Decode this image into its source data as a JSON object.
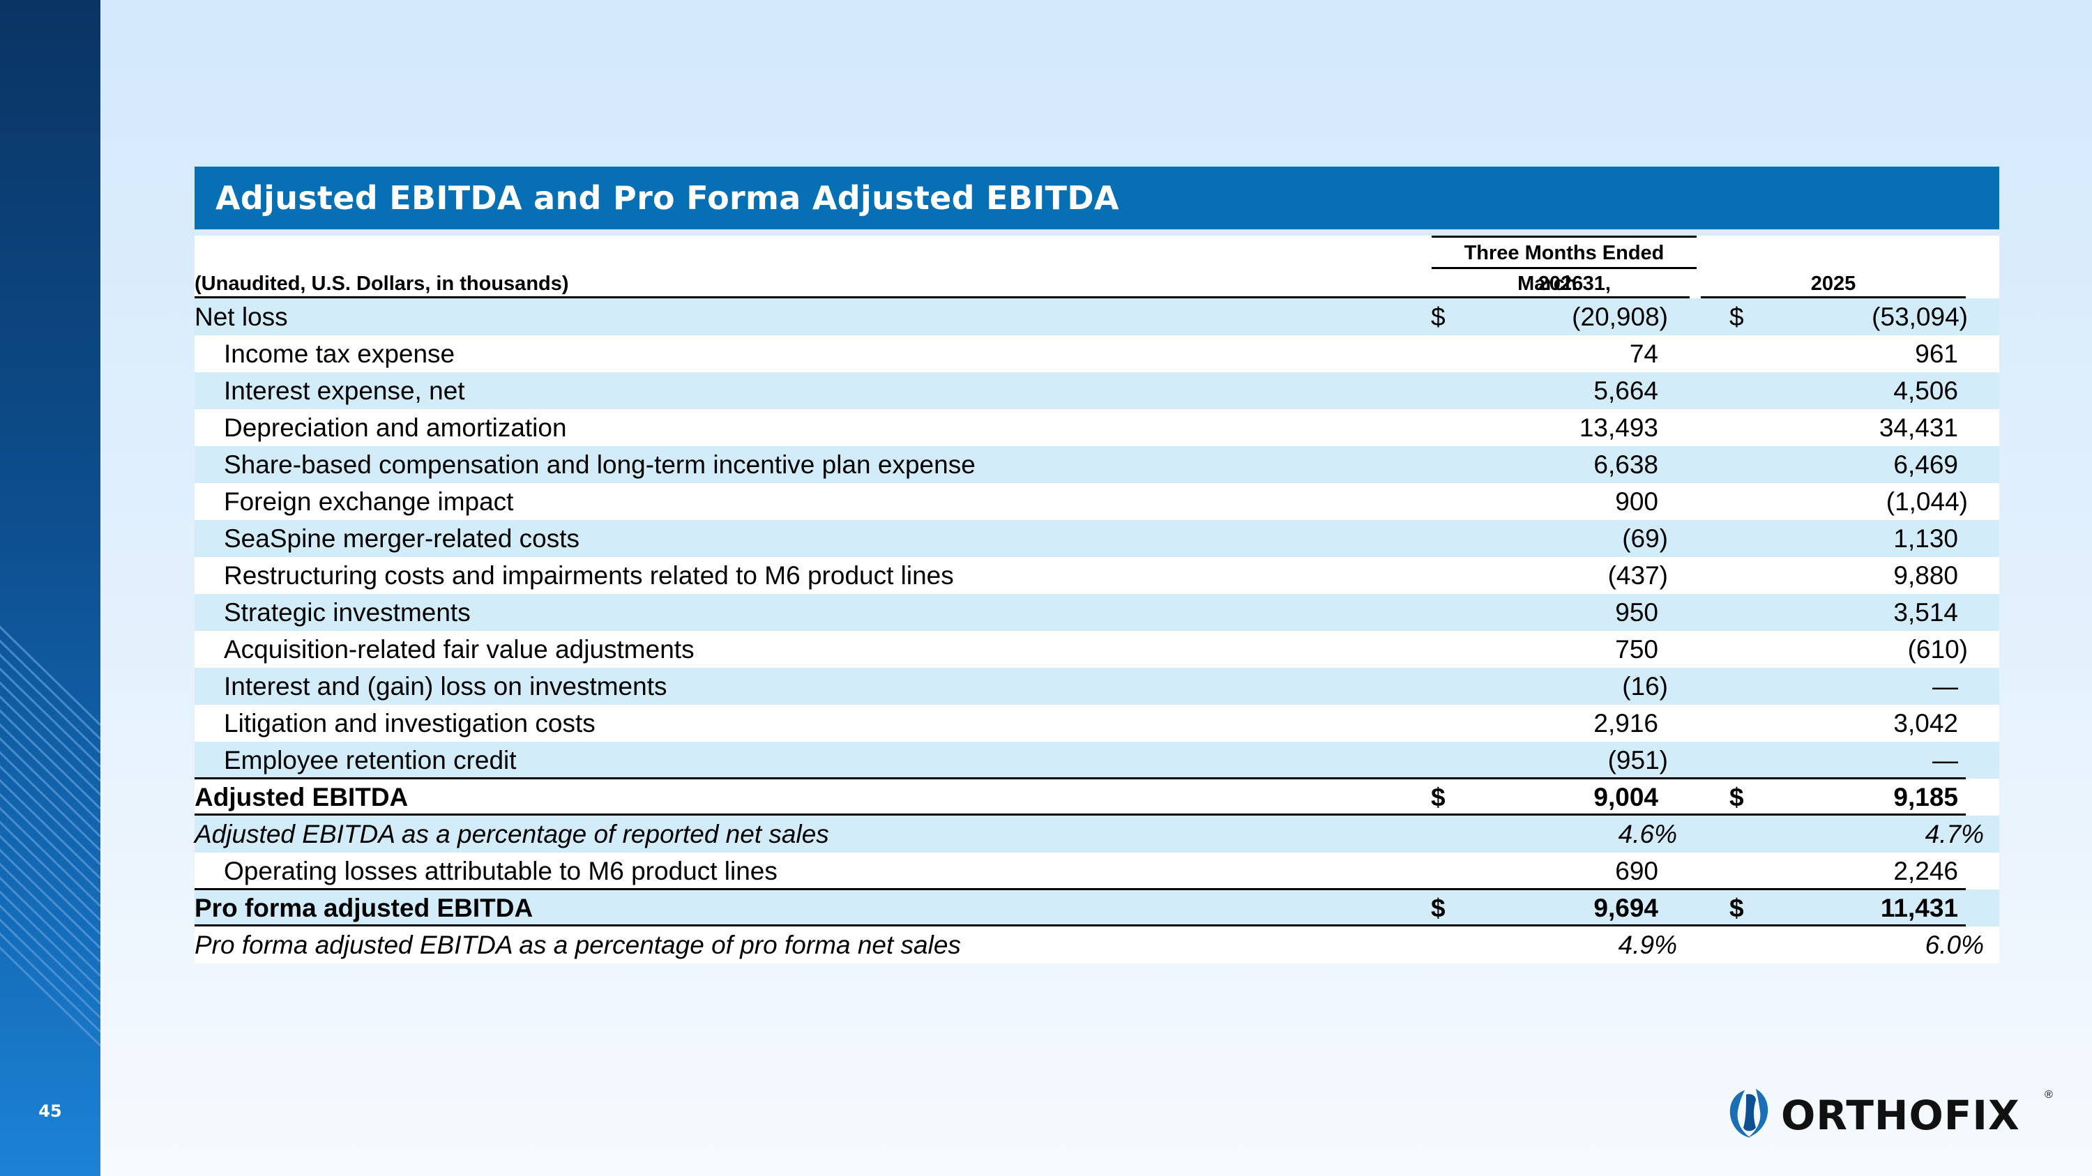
{
  "slide": {
    "page_number": "45",
    "title": "Adjusted EBITDA and Pro Forma Adjusted EBITDA",
    "brand_color": "#0770b4"
  },
  "table": {
    "period_header": "Three Months Ended March 31,",
    "unit_note": "(Unaudited, U.S. Dollars, in thousands)",
    "years": [
      "2026",
      "2025"
    ],
    "currency_symbol": "$",
    "rows": [
      {
        "label": "Net loss",
        "v2026": "(20,908",
        "v2025": "(53,094"
      },
      {
        "label": "Income tax expense",
        "v2026": "74",
        "v2025": "961"
      },
      {
        "label": "Interest expense, net",
        "v2026": "5,664",
        "v2025": "4,506"
      },
      {
        "label": "Depreciation and amortization",
        "v2026": "13,493",
        "v2025": "34,431"
      },
      {
        "label": "Share-based compensation and long-term incentive plan expense",
        "v2026": "6,638",
        "v2025": "6,469"
      },
      {
        "label": "Foreign exchange impact",
        "v2026": "900",
        "v2025": "(1,044"
      },
      {
        "label": "SeaSpine merger-related costs",
        "v2026": "(69",
        "v2025": "1,130"
      },
      {
        "label": "Restructuring costs and impairments related to M6 product lines",
        "v2026": "(437",
        "v2025": "9,880"
      },
      {
        "label": "Strategic investments",
        "v2026": "950",
        "v2025": "3,514"
      },
      {
        "label": "Acquisition-related fair value adjustments",
        "v2026": "750",
        "v2025": "(610"
      },
      {
        "label": "Interest and (gain) loss on investments",
        "v2026": "(16",
        "v2025": "—"
      },
      {
        "label": "Litigation and investigation costs",
        "v2026": "2,916",
        "v2025": "3,042"
      },
      {
        "label": "Employee retention credit",
        "v2026": "(951",
        "v2025": "—"
      },
      {
        "label": "Adjusted EBITDA",
        "v2026": "9,004",
        "v2025": "9,185"
      },
      {
        "label": "Adjusted EBITDA as a percentage of reported net sales",
        "v2026": "4.6%",
        "v2025": "4.7%"
      },
      {
        "label": "Operating losses attributable to M6 product lines",
        "v2026": "690",
        "v2025": "2,246"
      },
      {
        "label": "Pro forma adjusted EBITDA",
        "v2026": "9,694",
        "v2025": "11,431"
      },
      {
        "label": "Pro forma adjusted EBITDA as a percentage of pro forma net sales",
        "v2026": "4.9%",
        "v2025": "6.0%"
      }
    ]
  },
  "logo": {
    "wordmark": "ORTHOFIX",
    "registered_mark": "®",
    "icon": "orthofix-emblem-icon"
  }
}
